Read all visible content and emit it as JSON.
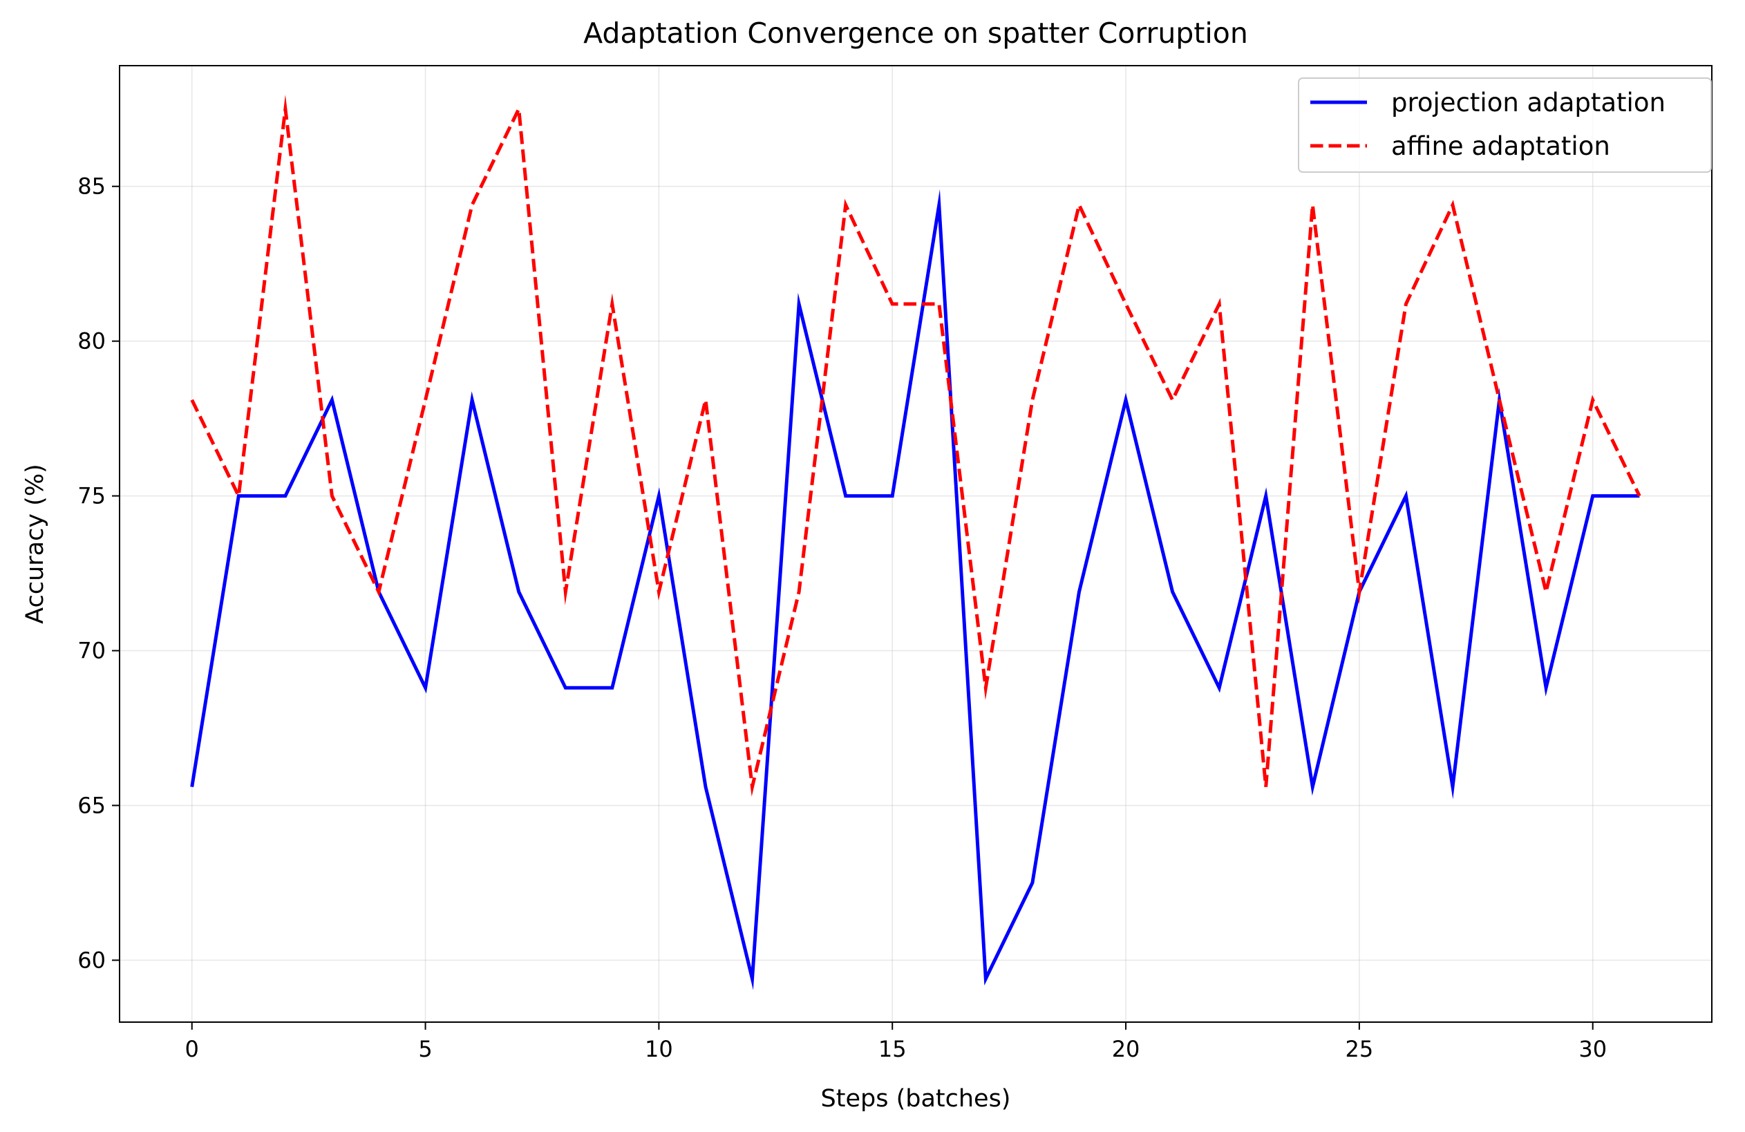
{
  "chart_data": {
    "type": "line",
    "title": "Adaptation Convergence on spatter Corruption",
    "xlabel": "Steps (batches)",
    "ylabel": "Accuracy (%)",
    "xlim": [
      -1.55,
      32.55
    ],
    "ylim": [
      58.0,
      88.9
    ],
    "xticks": [
      0,
      5,
      10,
      15,
      20,
      25,
      30
    ],
    "yticks": [
      60,
      65,
      70,
      75,
      80,
      85
    ],
    "grid": true,
    "legend_position": "upper right",
    "x": [
      0,
      1,
      2,
      3,
      4,
      5,
      6,
      7,
      8,
      9,
      10,
      11,
      12,
      13,
      14,
      15,
      16,
      17,
      18,
      19,
      20,
      21,
      22,
      23,
      24,
      25,
      26,
      27,
      28,
      29,
      30,
      31
    ],
    "series": [
      {
        "name": "projection adaptation",
        "color": "#0000ff",
        "style": "solid",
        "values": [
          65.6,
          75.0,
          75.0,
          78.1,
          71.9,
          68.8,
          78.1,
          71.9,
          68.8,
          68.8,
          75.0,
          65.6,
          59.4,
          81.2,
          75.0,
          75.0,
          84.4,
          59.4,
          62.5,
          71.9,
          78.1,
          71.9,
          68.8,
          75.0,
          65.6,
          71.9,
          75.0,
          65.6,
          78.1,
          68.8,
          75.0,
          75.0
        ]
      },
      {
        "name": "affine adaptation",
        "color": "#ff0000",
        "style": "dashed",
        "values": [
          78.1,
          75.0,
          87.5,
          75.0,
          71.9,
          78.1,
          84.4,
          87.5,
          71.9,
          81.2,
          71.9,
          78.1,
          65.6,
          71.9,
          84.4,
          81.2,
          81.2,
          68.8,
          78.1,
          84.4,
          81.2,
          78.1,
          81.2,
          65.6,
          84.4,
          71.9,
          81.2,
          84.4,
          78.1,
          71.9,
          78.1,
          75.0
        ]
      }
    ]
  }
}
